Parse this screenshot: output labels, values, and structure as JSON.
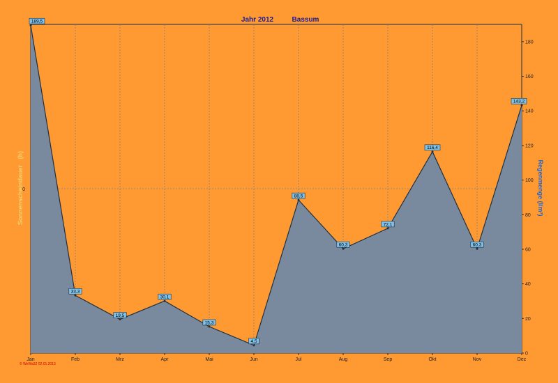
{
  "header": {
    "title": "Jahr  2012",
    "location": "Bassum"
  },
  "footer": {
    "credit": "© WeWa32  02.01.2013"
  },
  "colors": {
    "background": "#ff9a33",
    "area_fill": "#7a8a9e",
    "line": "#1f2f3f",
    "grid": "#5577aa",
    "label_box": "#7fc1e8"
  },
  "chart_data": {
    "type": "area",
    "title": "Jahr  2012    Bassum",
    "categories": [
      "Jan",
      "Feb",
      "Mrz",
      "Apr",
      "Mai",
      "Jun",
      "Jul",
      "Aug",
      "Sep",
      "Okt",
      "Nov",
      "Dez"
    ],
    "series": [
      {
        "name": "Regenmenge",
        "values": [
          189.5,
          33.3,
          19.5,
          30.1,
          15.3,
          4.5,
          88.5,
          60.3,
          72.1,
          116.4,
          60.3,
          143.2
        ]
      }
    ],
    "data_labels": [
      "189,5",
      "33,3",
      "19,5",
      "30,1",
      "15,3",
      "4,5",
      "88,5",
      "60,3",
      "72,1",
      "116,4",
      "60,3",
      "143,2"
    ],
    "ylabel_left": "Sonnenscheindauer",
    "ylabel_left_unit": "(h)",
    "ylabel_right": "Regenmenge  (l/m²)",
    "ylim_right": [
      0,
      190
    ],
    "yticks_right": [
      "0",
      "20",
      "40",
      "60",
      "80",
      "100",
      "120",
      "140",
      "160",
      "180"
    ],
    "ytick_left": "0",
    "grid": true
  }
}
